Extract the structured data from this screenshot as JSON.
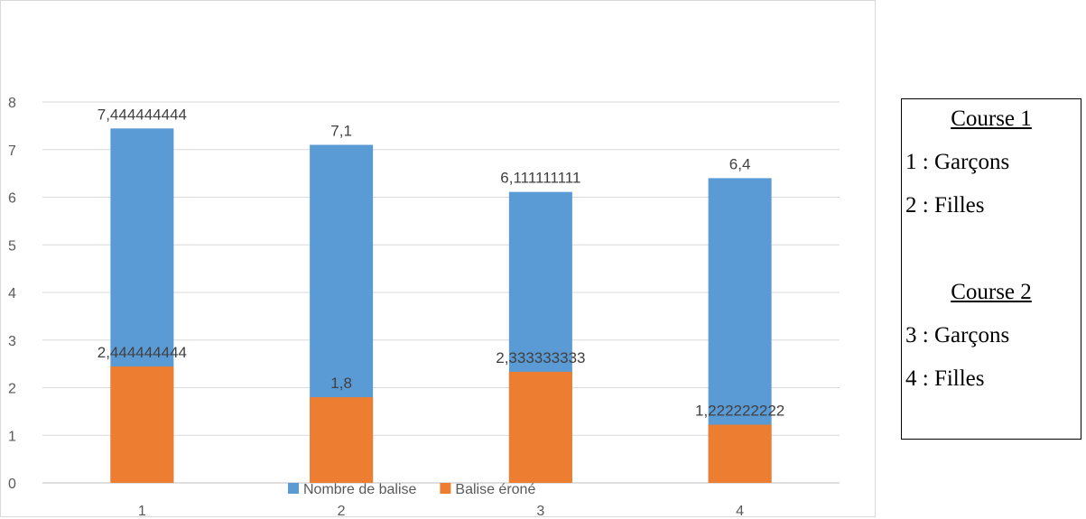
{
  "chart_data": {
    "type": "bar",
    "stacked": false,
    "overlap": true,
    "categories": [
      "1",
      "2",
      "3",
      "4"
    ],
    "series": [
      {
        "name": "Nombre de balise",
        "color": "#5b9bd5",
        "values": [
          7.444444444,
          7.1,
          6.111111111,
          6.4
        ],
        "labels": [
          "7,444444444",
          "7,1",
          "6,111111111",
          "6,4"
        ]
      },
      {
        "name": "Balise éroné",
        "color": "#ed7d31",
        "values": [
          2.444444444,
          1.8,
          2.333333333,
          1.222222222
        ],
        "labels": [
          "2,444444444",
          "1,8",
          "2,333333333",
          "1,222222222"
        ]
      }
    ],
    "yticks": [
      "0",
      "1",
      "2",
      "3",
      "4",
      "5",
      "6",
      "7",
      "8"
    ],
    "ylim": [
      0,
      8
    ],
    "grid": true,
    "legend_position": "bottom"
  },
  "notes": {
    "course1_title": "Course 1",
    "course1_line1": "1 : Garçons",
    "course1_line2": "2 : Filles",
    "course2_title": "Course 2",
    "course2_line1": "3 : Garçons",
    "course2_line2": "4 : Filles"
  }
}
